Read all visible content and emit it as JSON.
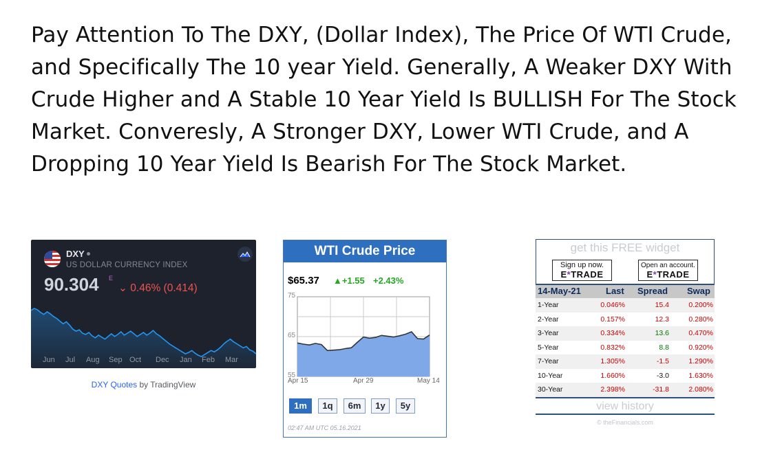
{
  "heading": "Pay Attention To The DXY, (Dollar Index), The Price Of WTI Crude, and Specifically The 10 year Yield. Generally, A Weaker DXY With Crude Higher and A Stable 10 Year Yield Is BULLISH For The Stock Market. Converesly, A Stronger DXY, Lower WTI Crude, and A Dropping 10 Year Yield Is Bearish For The Stock Market.",
  "dxy": {
    "symbol": "DXY",
    "name": "US DOLLAR CURRENCY INDEX",
    "price": "90.304",
    "flag_label": "E",
    "change": "⌄ 0.46% (0.414)",
    "months": [
      "Jun",
      "Jul",
      "Aug",
      "Sep",
      "Oct",
      "Dec",
      "Jan",
      "Feb",
      "Mar"
    ],
    "link": "DXQ Quotes",
    "link_text": "DXY Quotes",
    "by": " by TradingView",
    "line_color": "#2196f3",
    "series": [
      96.8,
      97.1,
      96.9,
      96.5,
      96.2,
      96.6,
      96.3,
      95.9,
      95.6,
      95.2,
      94.8,
      95.1,
      94.6,
      94.0,
      93.7,
      93.9,
      93.4,
      93.2,
      93.5,
      93.0,
      92.7,
      93.1,
      92.8,
      92.5,
      92.9,
      93.3,
      92.9,
      93.2,
      93.6,
      93.1,
      93.4,
      93.7,
      93.3,
      92.9,
      93.2,
      93.5,
      93.1,
      93.4,
      93.8,
      93.3,
      93.0,
      92.6,
      92.2,
      91.8,
      91.5,
      91.2,
      90.9,
      90.6,
      90.3,
      90.5,
      90.8,
      90.4,
      90.1,
      89.9,
      90.2,
      90.5,
      90.8,
      90.6,
      90.9,
      91.3,
      91.8,
      92.2,
      92.5,
      92.1,
      91.8,
      91.5,
      91.2,
      91.4,
      90.9,
      90.7,
      90.3
    ]
  },
  "wti": {
    "title": "WTI Crude Price",
    "price": "$65.37",
    "change": "▲+1.55",
    "change_pct": "+2.43%",
    "y_ticks": [
      "75",
      "65",
      "55"
    ],
    "x_ticks": [
      "Apr 15",
      "Apr 29",
      "May 14"
    ],
    "buttons": [
      "1m",
      "1q",
      "6m",
      "1y",
      "5y"
    ],
    "active_button": "1m",
    "timestamp": "02:47 AM UTC 05.16.2021",
    "fill_color": "#7fa8e8",
    "chart_data": {
      "type": "area",
      "ylim": [
        55,
        75
      ],
      "values": [
        63.4,
        63.1,
        62.9,
        63.3,
        63.0,
        61.5,
        61.6,
        61.7,
        62.0,
        62.2,
        63.6,
        64.9,
        64.6,
        64.8,
        65.3,
        65.1,
        64.9,
        65.2,
        65.6,
        66.2,
        64.5,
        64.4,
        65.4
      ]
    }
  },
  "treasury": {
    "promo": "get this FREE widget",
    "ad1_line1": "Sign up now.",
    "ad2_line1": "Open an account.",
    "ad_brand_pre": "E",
    "ad_brand_x": "*",
    "ad_brand_post": "TRADE",
    "date": "14-May-21",
    "headers": [
      "Last",
      "Spread",
      "Swap"
    ],
    "rows": [
      {
        "name": "1-Year",
        "last": "0.046%",
        "spread": "15.4",
        "swap": "0.200%",
        "spread_color": "#cc0000"
      },
      {
        "name": "2-Year",
        "last": "0.157%",
        "spread": "12.3",
        "swap": "0.280%",
        "spread_color": "#cc0000"
      },
      {
        "name": "3-Year",
        "last": "0.334%",
        "spread": "13.6",
        "swap": "0.470%",
        "spread_color": "#007700"
      },
      {
        "name": "5-Year",
        "last": "0.832%",
        "spread": "8.8",
        "swap": "0.920%",
        "spread_color": "#007700"
      },
      {
        "name": "7-Year",
        "last": "1.305%",
        "spread": "-1.5",
        "swap": "1.290%",
        "spread_color": "#cc0000"
      },
      {
        "name": "10-Year",
        "last": "1.660%",
        "spread": "-3.0",
        "swap": "1.630%",
        "spread_color": "#111111"
      },
      {
        "name": "30-Year",
        "last": "2.398%",
        "spread": "-31.8",
        "swap": "2.080%",
        "spread_color": "#cc0000"
      }
    ],
    "history": "view history",
    "copyright": "© theFinancials.com"
  }
}
